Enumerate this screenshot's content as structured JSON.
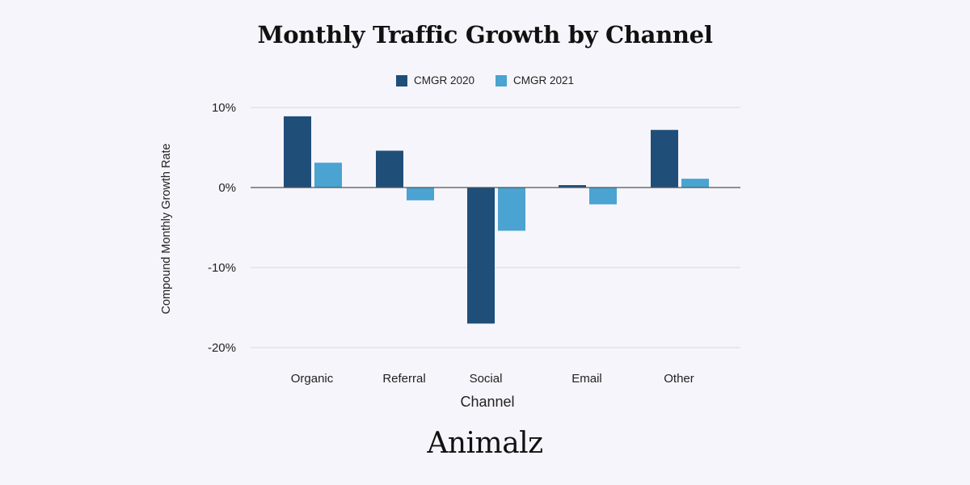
{
  "chart_data": {
    "type": "bar",
    "title": "Monthly Traffic Growth by Channel",
    "xlabel": "Channel",
    "ylabel": "Compound Monthly Growth Rate",
    "categories": [
      "Organic",
      "Referral",
      "Social",
      "Email",
      "Other"
    ],
    "series": [
      {
        "name": "CMGR 2020",
        "color": "#1f4e79",
        "values": [
          8.9,
          4.6,
          -17.0,
          0.3,
          7.2
        ]
      },
      {
        "name": "CMGR 2021",
        "color": "#4aa3d1",
        "values": [
          3.1,
          -1.6,
          -5.4,
          -2.1,
          1.1
        ]
      }
    ],
    "ylim": [
      -20,
      10
    ],
    "yticks": [
      10,
      0,
      -10,
      -20
    ],
    "ytick_labels": [
      "10%",
      "0%",
      "-10%",
      "-20%"
    ],
    "grid": true,
    "legend_position": "top-center"
  },
  "brand": "Animalz"
}
